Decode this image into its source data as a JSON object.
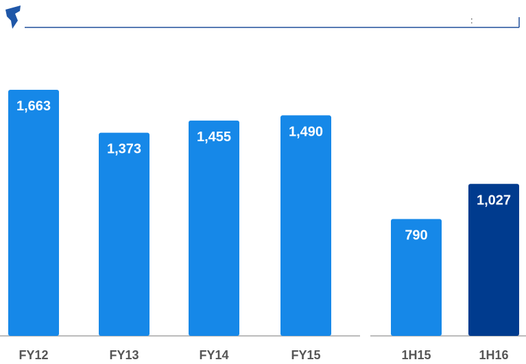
{
  "header": {
    "text": ":"
  },
  "chart_data": [
    {
      "type": "bar",
      "categories": [
        "FY12",
        "FY13",
        "FY14",
        "FY15"
      ],
      "values": [
        1663,
        1373,
        1455,
        1490
      ],
      "value_labels": [
        "1,663",
        "1,373",
        "1,455",
        "1,490"
      ],
      "colors": [
        "#1688e8",
        "#1688e8",
        "#1688e8",
        "#1688e8"
      ]
    },
    {
      "type": "bar",
      "categories": [
        "1H15",
        "1H16"
      ],
      "values": [
        790,
        1027
      ],
      "value_labels": [
        "790",
        "1,027"
      ],
      "colors": [
        "#1688e8",
        "#003b8e"
      ]
    }
  ]
}
